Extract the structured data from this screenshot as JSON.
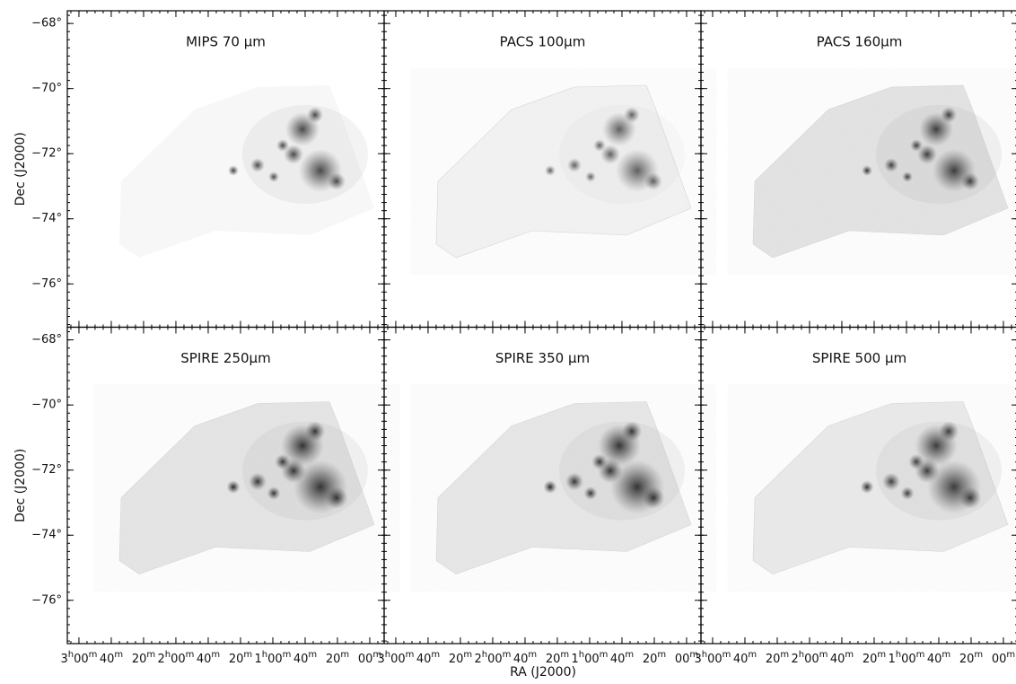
{
  "figure": {
    "panels": [
      {
        "title": "MIPS 70 μm"
      },
      {
        "title": "PACS 100μm"
      },
      {
        "title": "PACS 160μm"
      },
      {
        "title": "SPIRE 250μm"
      },
      {
        "title": "SPIRE 350 μm"
      },
      {
        "title": "SPIRE 500 μm"
      }
    ],
    "y_axis": {
      "label": "Dec (J2000)",
      "lim": [
        -67.61,
        -77.33
      ],
      "ticks": [
        {
          "value": -68,
          "label": "−68°"
        },
        {
          "value": -70,
          "label": "−70°"
        },
        {
          "value": -72,
          "label": "−72°"
        },
        {
          "value": -74,
          "label": "−74°"
        },
        {
          "value": -76,
          "label": "−76°"
        }
      ]
    },
    "x_axis": {
      "label": "RA (J2000)",
      "lim": [
        187.2,
        -8.9
      ],
      "ticks": [
        {
          "value": 180,
          "label": "3h00m"
        },
        {
          "value": 160,
          "label": "40m"
        },
        {
          "value": 140,
          "label": "20m"
        },
        {
          "value": 120,
          "label": "2h00m"
        },
        {
          "value": 100,
          "label": "40m"
        },
        {
          "value": 80,
          "label": "20m"
        },
        {
          "value": 60,
          "label": "1h00m"
        },
        {
          "value": 40,
          "label": "40m"
        },
        {
          "value": 20,
          "label": "20m"
        },
        {
          "value": 0,
          "label": "00m"
        }
      ]
    }
  }
}
